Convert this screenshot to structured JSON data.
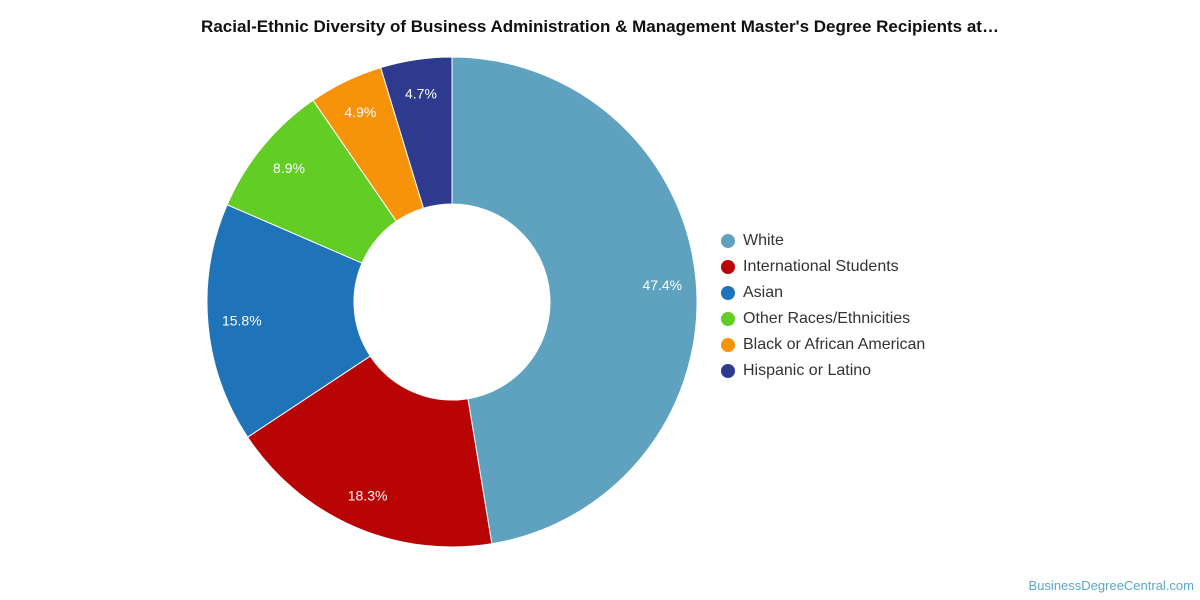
{
  "chart_data": {
    "type": "pie",
    "variant": "donut",
    "title": "Racial-Ethnic Diversity of Business Administration & Management Master's Degree Recipients at…",
    "slices": [
      {
        "name": "White",
        "value": 47.4,
        "label": "47.4%",
        "color": "#5ea2c0"
      },
      {
        "name": "International Students",
        "value": 18.3,
        "label": "18.3%",
        "color": "#b80404"
      },
      {
        "name": "Asian",
        "value": 15.8,
        "label": "15.8%",
        "color": "#1f73b8"
      },
      {
        "name": "Other Races/Ethnicities",
        "value": 8.9,
        "label": "8.9%",
        "color": "#62cd24"
      },
      {
        "name": "Black or African American",
        "value": 4.9,
        "label": "4.9%",
        "color": "#f7930a"
      },
      {
        "name": "Hispanic or Latino",
        "value": 4.7,
        "label": "4.7%",
        "color": "#2d3a8e"
      }
    ],
    "legend_position": "right"
  },
  "watermark": "BusinessDegreeCentral.com"
}
